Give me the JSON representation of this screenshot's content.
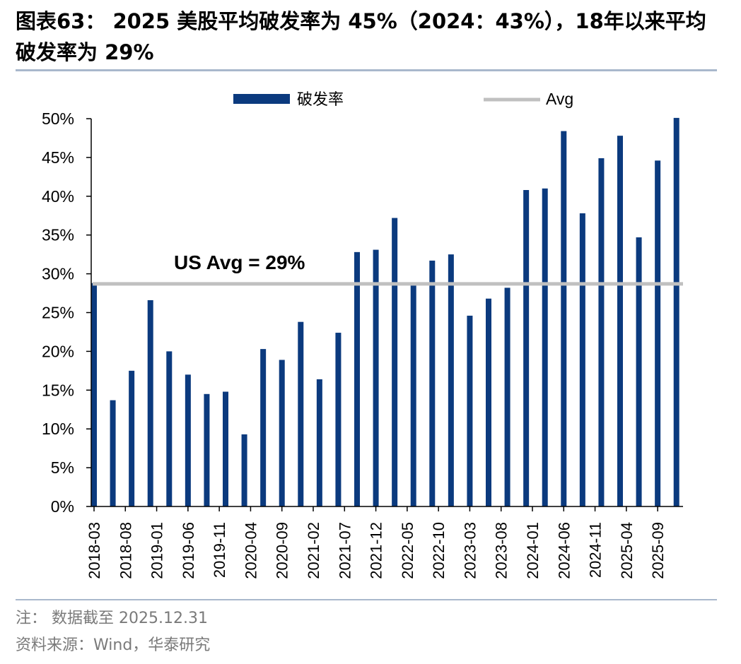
{
  "header": {
    "title": "图表63： 2025 美股平均破发率为 45%（2024：43%），18年以来平均破发率为 29%"
  },
  "chart_data": {
    "type": "bar",
    "title": "",
    "xlabel": "",
    "ylabel": "",
    "ylim": [
      0,
      50
    ],
    "y_ticks": [
      "0%",
      "5%",
      "10%",
      "15%",
      "20%",
      "25%",
      "30%",
      "35%",
      "40%",
      "45%",
      "50%"
    ],
    "x_tick_labels": [
      "2018-03",
      "2018-08",
      "2019-01",
      "2019-06",
      "2019-11",
      "2020-04",
      "2020-09",
      "2021-02",
      "2021-07",
      "2021-12",
      "2022-05",
      "2022-10",
      "2023-03",
      "2023-08",
      "2024-01",
      "2024-06",
      "2024-11",
      "2025-04",
      "2025-09"
    ],
    "categories": [
      "2018Q1",
      "2018Q2",
      "2018Q3",
      "2018Q4",
      "2019Q1",
      "2019Q2",
      "2019Q3",
      "2019Q4",
      "2020Q1",
      "2020Q2",
      "2020Q3",
      "2020Q4",
      "2021Q1",
      "2021Q2",
      "2021Q3",
      "2021Q4",
      "2022Q1",
      "2022Q2",
      "2022Q3",
      "2022Q4",
      "2023Q1",
      "2023Q2",
      "2023Q3",
      "2023Q4",
      "2024Q1",
      "2024Q2",
      "2024Q3",
      "2024Q4",
      "2025Q1",
      "2025Q2",
      "2025Q3",
      "2025Q4"
    ],
    "series": [
      {
        "name": "破发率",
        "color": "#0b3a7e",
        "values": [
          28.8,
          13.7,
          17.5,
          26.6,
          20.0,
          17.0,
          14.5,
          14.8,
          9.3,
          20.3,
          18.9,
          23.8,
          16.4,
          22.4,
          32.8,
          33.1,
          37.2,
          28.5,
          31.7,
          32.5,
          24.6,
          26.8,
          28.2,
          40.8,
          41.0,
          48.4,
          37.8,
          44.9,
          47.8,
          34.7,
          44.6,
          50.1
        ]
      }
    ],
    "avg_line": {
      "name": "Avg",
      "value": 28.7,
      "color": "#c0c0c0"
    },
    "annotation": "US Avg = 29%",
    "legend_position": "top"
  },
  "footer": {
    "note": "注： 数据截至 2025.12.31",
    "source": "资料来源：Wind，华泰研究"
  }
}
